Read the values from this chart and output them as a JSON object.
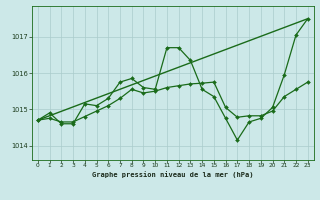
{
  "title": "Graphe pression niveau de la mer (hPa)",
  "background_color": "#cce8e8",
  "grid_color": "#aacccc",
  "line_color": "#1a6b1a",
  "xlim": [
    -0.5,
    23.5
  ],
  "ylim": [
    1013.6,
    1017.85
  ],
  "yticks": [
    1014,
    1015,
    1016,
    1017
  ],
  "xticks": [
    0,
    1,
    2,
    3,
    4,
    5,
    6,
    7,
    8,
    9,
    10,
    11,
    12,
    13,
    14,
    15,
    16,
    17,
    18,
    19,
    20,
    21,
    22,
    23
  ],
  "trend_x": [
    0,
    23
  ],
  "trend_y": [
    1014.7,
    1017.5
  ],
  "line_detailed_x": [
    0,
    1,
    2,
    3,
    4,
    5,
    6,
    7,
    8,
    9,
    10,
    11,
    12,
    13,
    14,
    15,
    16,
    17,
    18,
    19,
    20,
    21,
    22,
    23
  ],
  "line_detailed_y": [
    1014.7,
    1014.9,
    1014.6,
    1014.6,
    1015.15,
    1015.1,
    1015.3,
    1015.75,
    1015.85,
    1015.6,
    1015.55,
    1016.7,
    1016.7,
    1016.35,
    1015.55,
    1015.35,
    1014.75,
    1014.15,
    1014.65,
    1014.75,
    1015.05,
    1015.95,
    1017.05,
    1017.5
  ],
  "line_smooth_x": [
    0,
    1,
    2,
    3,
    4,
    5,
    6,
    7,
    8,
    9,
    10,
    11,
    12,
    13,
    14,
    15,
    16,
    17,
    18,
    19,
    20,
    21,
    22,
    23
  ],
  "line_smooth_y": [
    1014.7,
    1014.75,
    1014.65,
    1014.65,
    1014.8,
    1014.95,
    1015.1,
    1015.3,
    1015.55,
    1015.45,
    1015.5,
    1015.6,
    1015.65,
    1015.7,
    1015.72,
    1015.75,
    1015.05,
    1014.78,
    1014.82,
    1014.82,
    1014.95,
    1015.35,
    1015.55,
    1015.75
  ]
}
